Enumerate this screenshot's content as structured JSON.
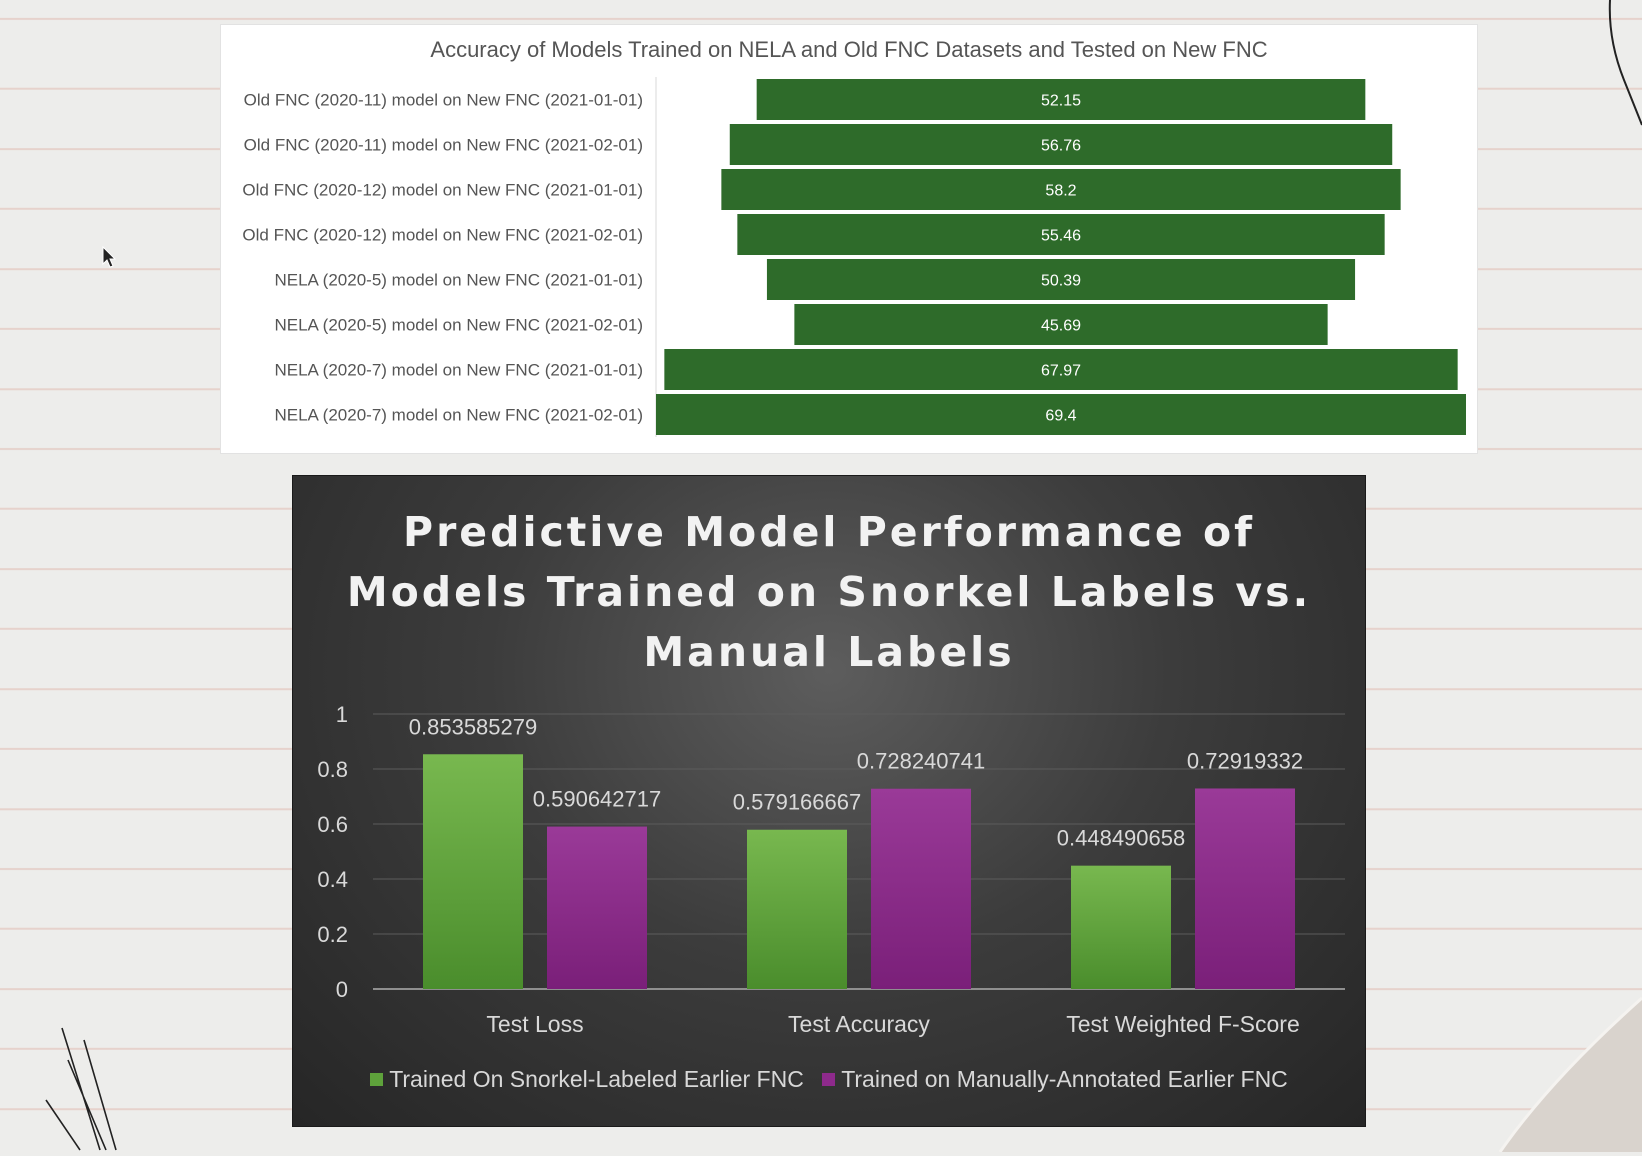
{
  "chart_data": [
    {
      "type": "bar",
      "orientation": "horizontal",
      "style": "funnel",
      "title": "Accuracy of Models Trained on NELA and Old FNC Datasets and Tested on New FNC",
      "categories": [
        "Old FNC (2020-11) model on New FNC (2021-01-01)",
        "Old FNC (2020-11) model on New FNC (2021-02-01)",
        "Old FNC (2020-12) model on New FNC (2021-01-01)",
        "Old FNC (2020-12) model on New FNC (2021-02-01)",
        "NELA (2020-5) model on New FNC (2021-01-01)",
        "NELA (2020-5) model on New FNC (2021-02-01)",
        "NELA (2020-7) model on New FNC (2021-01-01)",
        "NELA (2020-7) model on New FNC (2021-02-01)"
      ],
      "values": [
        52.15,
        56.76,
        58.2,
        55.46,
        50.39,
        45.69,
        67.97,
        69.4
      ],
      "data_labels": [
        "52.15",
        "56.76",
        "58.2",
        "55.46",
        "50.39",
        "45.69",
        "67.97",
        "69.4"
      ],
      "xlim": [
        0,
        69.4
      ],
      "grid": false,
      "color": "#2e6b2a"
    },
    {
      "type": "bar",
      "title": "Predictive Model Performance of Models Trained on Snorkel Labels vs. Manual Labels",
      "categories": [
        "Test Loss",
        "Test Accuracy",
        "Test Weighted F-Score"
      ],
      "series": [
        {
          "name": "Trained On Snorkel-Labeled Earlier FNC",
          "values": [
            0.853585279,
            0.579166667,
            0.448490658
          ],
          "data_labels": [
            "0.853585279",
            "0.579166667",
            "0.448490658"
          ],
          "color": "#5ea23b"
        },
        {
          "name": "Trained on Manually-Annotated Earlier FNC",
          "values": [
            0.590642717,
            0.728240741,
            0.72919332
          ],
          "data_labels": [
            "0.590642717",
            "0.728240741",
            "0.72919332"
          ],
          "color": "#8e2a8c"
        }
      ],
      "ylim": [
        0,
        1
      ],
      "yticks": [
        "0",
        "0.2",
        "0.4",
        "0.6",
        "0.8",
        "1"
      ],
      "grid": true,
      "legend": "bottom"
    }
  ]
}
